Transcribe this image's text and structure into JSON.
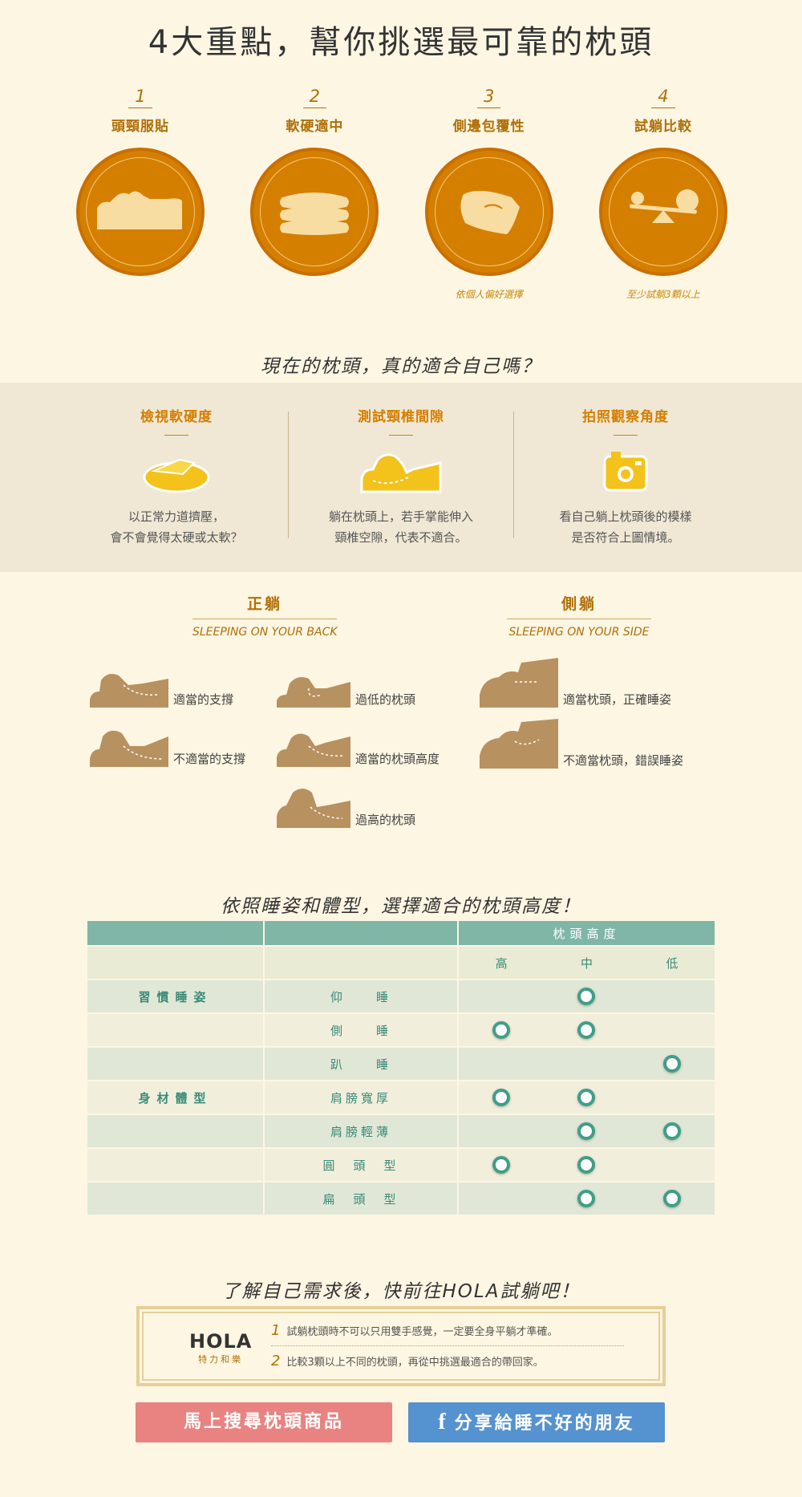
{
  "header": {
    "title": "4大重點，幫你挑選最可靠的枕頭"
  },
  "points": [
    {
      "num": "1",
      "label": "頭頸服貼",
      "icon": "head-on-pillow-icon",
      "note": ""
    },
    {
      "num": "2",
      "label": "軟硬適中",
      "icon": "stacked-pillows-icon",
      "note": ""
    },
    {
      "num": "3",
      "label": "側邊包覆性",
      "icon": "pillow-icon",
      "note": "依個人偏好選擇"
    },
    {
      "num": "4",
      "label": "試躺比較",
      "icon": "seesaw-icon",
      "note": "至少試躺3顆以上"
    }
  ],
  "question": {
    "title": "現在的枕頭，真的適合自己嗎？"
  },
  "tips": [
    {
      "title": "檢視軟硬度",
      "icon": "pillow-pressing-icon",
      "line1": "以正常力道擠壓，",
      "line2": "會不會覺得太硬或太軟？"
    },
    {
      "title": "測試頸椎間隙",
      "icon": "head-gap-icon",
      "line1": "躺在枕頭上，若手掌能伸入",
      "line2": "頸椎空隙，代表不適合。"
    },
    {
      "title": "拍照觀察角度",
      "icon": "camera-icon",
      "line1": "看自己躺上枕頭後的模樣",
      "line2": "是否符合上圖情境。"
    }
  ],
  "positions": {
    "back": {
      "title": "正躺",
      "subtitle": "SLEEPING ON YOUR BACK"
    },
    "side": {
      "title": "側躺",
      "subtitle": "SLEEPING ON YOUR SIDE"
    },
    "items": {
      "proper_support": "適當的支撐",
      "improper_support": "不適當的支撐",
      "too_low": "過低的枕頭",
      "proper_height": "適當的枕頭高度",
      "too_high": "過高的枕頭",
      "side_proper": "適當枕頭，正確睡姿",
      "side_improper": "不適當枕頭，錯誤睡姿"
    }
  },
  "height_table": {
    "title": "依照睡姿和體型，選擇適合的枕頭高度！",
    "header": "枕頭高度",
    "columns": [
      "高",
      "中",
      "低"
    ],
    "rows": [
      {
        "category": "習慣睡姿",
        "posture": "仰　　睡",
        "marks": [
          false,
          true,
          false
        ]
      },
      {
        "category": "",
        "posture": "側　　睡",
        "marks": [
          true,
          true,
          false
        ]
      },
      {
        "category": "",
        "posture": "趴　　睡",
        "marks": [
          false,
          false,
          true
        ]
      },
      {
        "category": "身材體型",
        "posture": "肩膀寬厚",
        "marks": [
          true,
          true,
          false
        ]
      },
      {
        "category": "",
        "posture": "肩膀輕薄",
        "marks": [
          false,
          true,
          true
        ]
      },
      {
        "category": "",
        "posture": "圓　頭　型",
        "marks": [
          true,
          true,
          false
        ]
      },
      {
        "category": "",
        "posture": "扁　頭　型",
        "marks": [
          false,
          true,
          true
        ]
      }
    ]
  },
  "cta": {
    "title": "了解自己需求後，快前往HOLA試躺吧！",
    "logo_text": "HOLA",
    "logo_sub": "特力和樂",
    "rules": [
      {
        "num": "1",
        "text": "試躺枕頭時不可以只用雙手感覺，一定要全身平躺才準確。"
      },
      {
        "num": "2",
        "text": "比較3顆以上不同的枕頭，再從中挑選最適合的帶回家。"
      }
    ],
    "shop_button": "馬上搜尋枕頭商品",
    "share_icon": "f",
    "share_button": "分享給睡不好的朋友"
  },
  "colors": {
    "accent": "#d57f00",
    "table_header": "#7fb6a6",
    "dot": "#3f9e87",
    "shop": "#e88381",
    "share": "#5592d0"
  }
}
